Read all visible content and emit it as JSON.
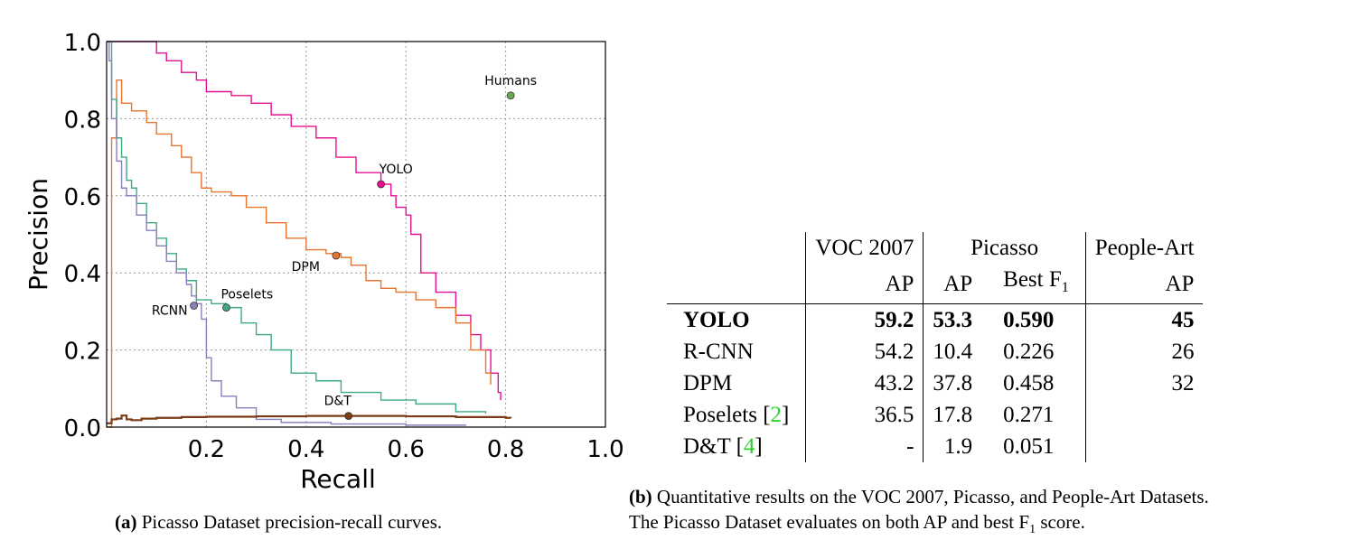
{
  "chart_data": {
    "type": "line",
    "xlabel": "Recall",
    "ylabel": "Precision",
    "xlim": [
      0,
      1.0
    ],
    "ylim": [
      0,
      1.0
    ],
    "xticks": [
      "0.2",
      "0.4",
      "0.6",
      "0.8",
      "1.0"
    ],
    "xtick_values": [
      0.2,
      0.4,
      0.6,
      0.8,
      1.0
    ],
    "yticks": [
      "0.0",
      "0.2",
      "0.4",
      "0.6",
      "0.8",
      "1.0"
    ],
    "ytick_values": [
      0.0,
      0.2,
      0.4,
      0.6,
      0.8,
      1.0
    ],
    "grid": true,
    "series": [
      {
        "name": "YOLO",
        "color": "#e3118f",
        "x": [
          0.0,
          0.09,
          0.1,
          0.12,
          0.15,
          0.18,
          0.2,
          0.25,
          0.29,
          0.33,
          0.37,
          0.42,
          0.46,
          0.5,
          0.55,
          0.57,
          0.58,
          0.6,
          0.61,
          0.63,
          0.66,
          0.7,
          0.73,
          0.75,
          0.77,
          0.785,
          0.79
        ],
        "y": [
          1.0,
          1.0,
          0.97,
          0.95,
          0.92,
          0.9,
          0.87,
          0.86,
          0.84,
          0.81,
          0.78,
          0.75,
          0.7,
          0.66,
          0.63,
          0.6,
          0.57,
          0.55,
          0.5,
          0.4,
          0.35,
          0.29,
          0.24,
          0.2,
          0.14,
          0.09,
          0.07
        ]
      },
      {
        "name": "DPM",
        "color": "#e8742f",
        "x": [
          0.0,
          0.01,
          0.02,
          0.03,
          0.05,
          0.08,
          0.1,
          0.13,
          0.15,
          0.17,
          0.19,
          0.21,
          0.25,
          0.28,
          0.32,
          0.36,
          0.4,
          0.44,
          0.47,
          0.49,
          0.52,
          0.55,
          0.58,
          0.62,
          0.66,
          0.7,
          0.73,
          0.76,
          0.77
        ],
        "y": [
          0.0,
          0.75,
          0.9,
          0.84,
          0.82,
          0.79,
          0.76,
          0.73,
          0.7,
          0.66,
          0.62,
          0.61,
          0.6,
          0.57,
          0.53,
          0.49,
          0.46,
          0.45,
          0.44,
          0.42,
          0.38,
          0.36,
          0.35,
          0.33,
          0.31,
          0.27,
          0.2,
          0.14,
          0.11
        ]
      },
      {
        "name": "Poselets",
        "color": "#3cab85",
        "x": [
          0.0,
          0.01,
          0.02,
          0.03,
          0.04,
          0.05,
          0.06,
          0.08,
          0.1,
          0.12,
          0.14,
          0.16,
          0.18,
          0.21,
          0.24,
          0.27,
          0.3,
          0.33,
          0.37,
          0.42,
          0.47,
          0.55,
          0.62,
          0.7,
          0.76
        ],
        "y": [
          1.0,
          0.85,
          0.75,
          0.7,
          0.64,
          0.62,
          0.58,
          0.53,
          0.49,
          0.45,
          0.41,
          0.38,
          0.33,
          0.32,
          0.31,
          0.27,
          0.24,
          0.2,
          0.14,
          0.12,
          0.09,
          0.07,
          0.06,
          0.04,
          0.035
        ]
      },
      {
        "name": "RCNN",
        "color": "#8b7fbd",
        "x": [
          0.0,
          0.005,
          0.01,
          0.02,
          0.03,
          0.04,
          0.06,
          0.08,
          0.1,
          0.12,
          0.14,
          0.16,
          0.17,
          0.18,
          0.19,
          0.2,
          0.21,
          0.23,
          0.26,
          0.3,
          0.35,
          0.45,
          0.6,
          0.72
        ],
        "y": [
          1.0,
          0.95,
          0.8,
          0.69,
          0.62,
          0.6,
          0.55,
          0.51,
          0.47,
          0.43,
          0.4,
          0.37,
          0.34,
          0.32,
          0.28,
          0.18,
          0.12,
          0.08,
          0.05,
          0.02,
          0.012,
          0.008,
          0.005,
          0.004
        ]
      },
      {
        "name": "D&T",
        "color": "#7a3b16",
        "x": [
          0.0,
          0.01,
          0.02,
          0.03,
          0.04,
          0.05,
          0.07,
          0.1,
          0.15,
          0.2,
          0.3,
          0.4,
          0.5,
          0.6,
          0.7,
          0.8,
          0.81
        ],
        "y": [
          0.01,
          0.02,
          0.022,
          0.03,
          0.02,
          0.018,
          0.022,
          0.024,
          0.026,
          0.027,
          0.028,
          0.029,
          0.029,
          0.028,
          0.026,
          0.024,
          0.023
        ]
      }
    ],
    "markers": [
      {
        "label": "Humans",
        "x": 0.81,
        "y": 0.86,
        "color": "#6aa84f"
      },
      {
        "label": "YOLO",
        "x": 0.55,
        "y": 0.63,
        "color": "#e3118f"
      },
      {
        "label": "DPM",
        "x": 0.46,
        "y": 0.445,
        "color": "#e8742f"
      },
      {
        "label": "Poselets",
        "x": 0.24,
        "y": 0.31,
        "color": "#3cab85"
      },
      {
        "label": "RCNN",
        "x": 0.175,
        "y": 0.315,
        "color": "#8b7fbd"
      },
      {
        "label": "D&T",
        "x": 0.485,
        "y": 0.029,
        "color": "#7a3b16"
      }
    ]
  },
  "captions": {
    "a_tag": "(a)",
    "a_text": " Picasso Dataset precision-recall curves.",
    "b_tag": "(b)",
    "b_text_line1": " Quantitative results on the VOC 2007, Picasso, and People-Art Datasets.",
    "b_text_line2": "The Picasso Dataset evaluates on both AP and best F",
    "b_text_line2_sub": "1",
    "b_text_line2_end": " score."
  },
  "table": {
    "header1": {
      "voc": "VOC 2007",
      "picasso": "Picasso",
      "peopleart": "People-Art"
    },
    "header2": {
      "voc_ap": "AP",
      "picasso_ap": "AP",
      "best_f": "Best F",
      "best_f_sub": "1",
      "peopleart_ap": "AP"
    },
    "rows": [
      {
        "method": "YOLO",
        "voc_ap": "59.2",
        "picasso_ap": "53.3",
        "best_f1": "0.590",
        "peopleart_ap": "45",
        "ref": ""
      },
      {
        "method": "R-CNN",
        "voc_ap": "54.2",
        "picasso_ap": "10.4",
        "best_f1": "0.226",
        "peopleart_ap": "26",
        "ref": ""
      },
      {
        "method": "DPM",
        "voc_ap": "43.2",
        "picasso_ap": "37.8",
        "best_f1": "0.458",
        "peopleart_ap": "32",
        "ref": ""
      },
      {
        "method": "Poselets",
        "voc_ap": "36.5",
        "picasso_ap": "17.8",
        "best_f1": "0.271",
        "peopleart_ap": "",
        "ref": "2"
      },
      {
        "method": "D&T",
        "voc_ap": "-",
        "picasso_ap": "1.9",
        "best_f1": "0.051",
        "peopleart_ap": "",
        "ref": "4"
      }
    ]
  }
}
